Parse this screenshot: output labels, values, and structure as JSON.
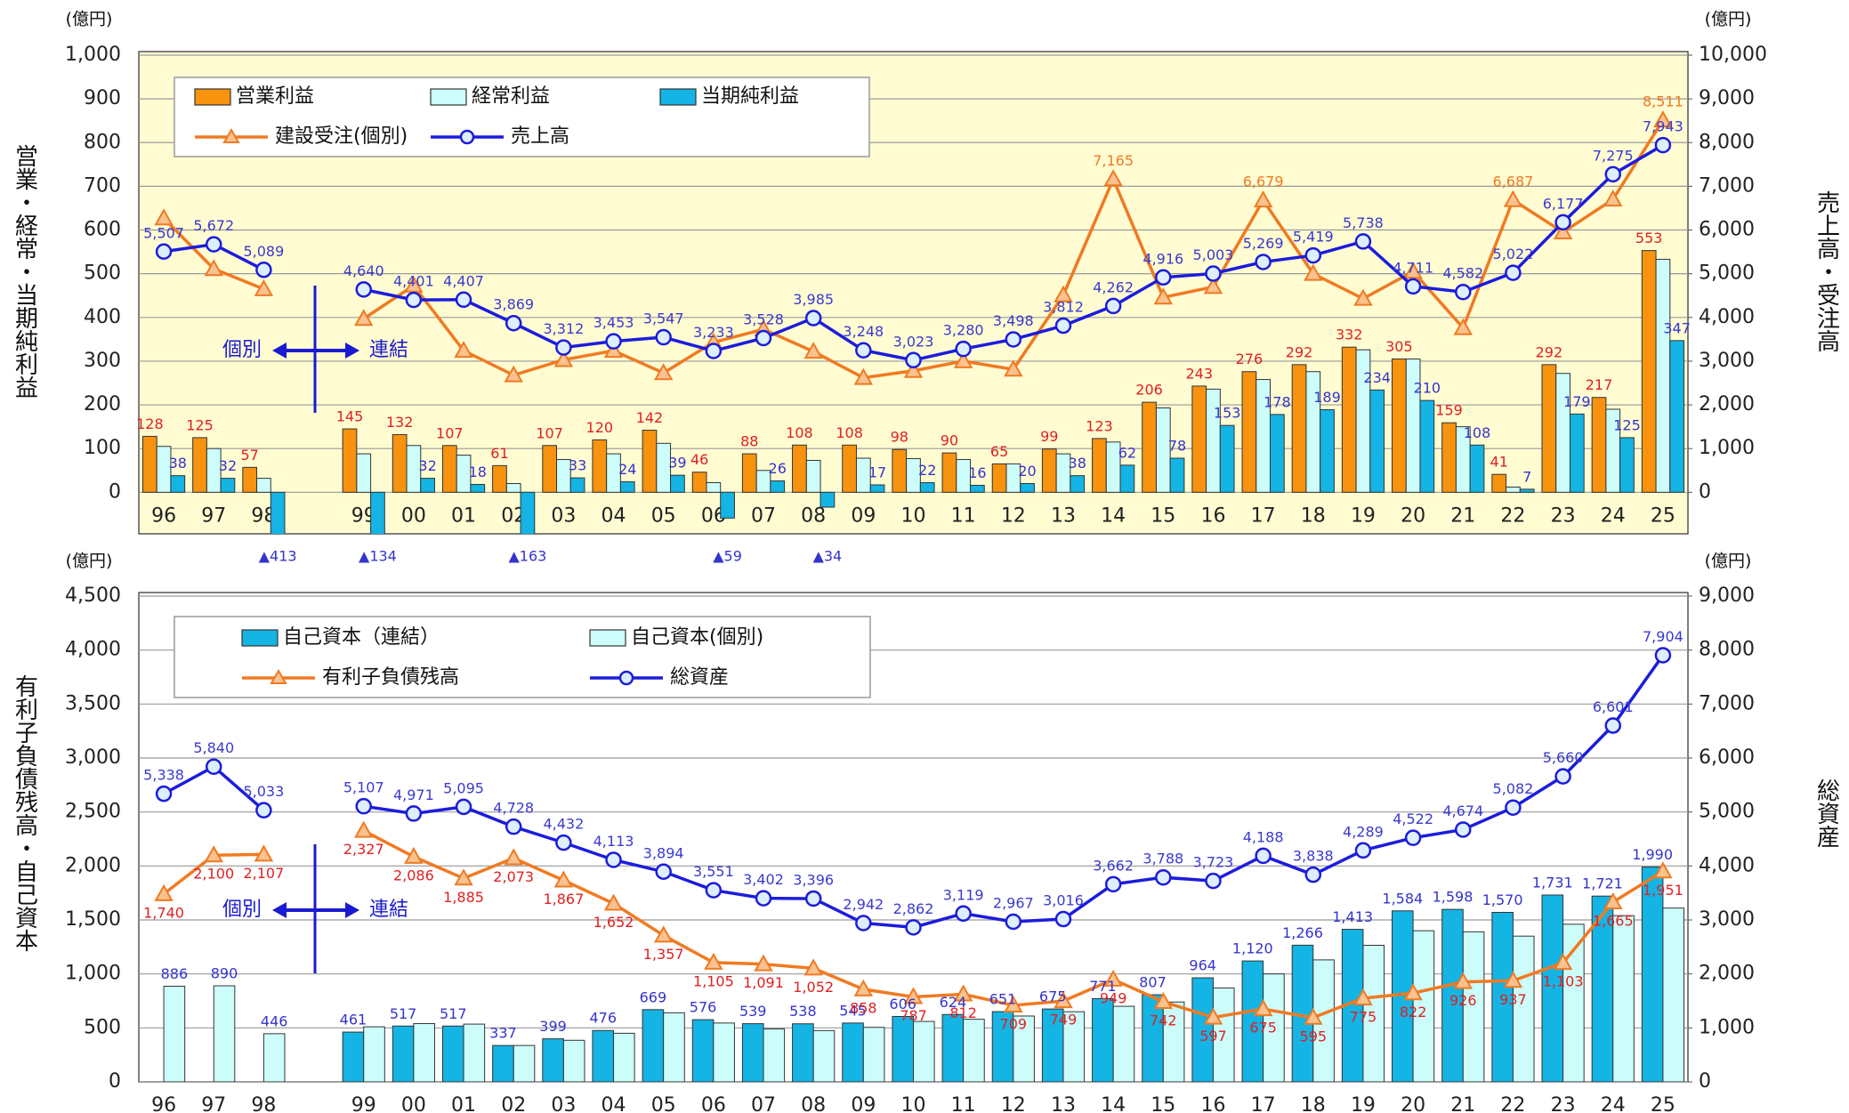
{
  "chart_data": [
    {
      "type": "combo",
      "unit_left": "(億円)",
      "unit_right": "(億円)",
      "ylabel": "営業・経常・当期純利益",
      "y2label": "売上高・受注高",
      "annotations": [
        "個別",
        "連結"
      ],
      "categories": [
        "96",
        "97",
        "98",
        null,
        "99",
        "00",
        "01",
        "02",
        "03",
        "04",
        "05",
        "06",
        "07",
        "08",
        "09",
        "10",
        "11",
        "12",
        "13",
        "14",
        "15",
        "16",
        "17",
        "18",
        "19",
        "20",
        "21",
        "22",
        "23",
        "24",
        "25"
      ],
      "ylim": [
        -95,
        1000
      ],
      "yticks": [
        0,
        100,
        200,
        300,
        400,
        500,
        600,
        700,
        800,
        900,
        {
          "value": 1000,
          "label": "1,000"
        }
      ],
      "y2lim": [
        -950,
        10000
      ],
      "y2ticks": [
        0,
        {
          "value": 1000,
          "label": "1,000"
        },
        {
          "value": 2000,
          "label": "2,000"
        },
        {
          "value": 3000,
          "label": "3,000"
        },
        {
          "value": 4000,
          "label": "4,000"
        },
        {
          "value": 5000,
          "label": "5,000"
        },
        {
          "value": 6000,
          "label": "6,000"
        },
        {
          "value": 7000,
          "label": "7,000"
        },
        {
          "value": 8000,
          "label": "8,000"
        },
        {
          "value": 9000,
          "label": "9,000"
        },
        {
          "value": 10000,
          "label": "10,000"
        }
      ],
      "grid": true,
      "background": "#fffcd2",
      "series": [
        {
          "name": "営業利益",
          "type": "bar",
          "color": "#f7930f",
          "label_color": "#e02020",
          "data_labels": true,
          "values": [
            128,
            125,
            57,
            null,
            145,
            132,
            107,
            61,
            107,
            120,
            142,
            46,
            88,
            108,
            108,
            98,
            90,
            65,
            99,
            123,
            206,
            243,
            276,
            292,
            332,
            305,
            159,
            41,
            292,
            217,
            553
          ]
        },
        {
          "name": "経常利益",
          "type": "bar",
          "color": "#ccfdfb",
          "values": [
            105,
            100,
            32,
            null,
            88,
            107,
            85,
            20,
            75,
            88,
            112,
            22,
            50,
            73,
            78,
            77,
            75,
            65,
            88,
            115,
            193,
            236,
            258,
            276,
            326,
            305,
            150,
            12,
            272,
            190,
            533
          ]
        },
        {
          "name": "当期純利益",
          "type": "bar",
          "color": "#14b4e4",
          "label_color": "#3434cc",
          "values": [
            38,
            32,
            -413,
            null,
            -134,
            32,
            18,
            -163,
            33,
            24,
            39,
            -59,
            26,
            -34,
            17,
            22,
            16,
            20,
            38,
            62,
            78,
            153,
            178,
            189,
            234,
            210,
            108,
            7,
            179,
            125,
            347
          ],
          "value_labels": [
            "38",
            "32",
            "▲413",
            null,
            "▲134",
            "32",
            "18",
            "▲163",
            "33",
            "24",
            "39",
            "▲59",
            "26",
            "▲34",
            "17",
            "22",
            "16",
            "20",
            "38",
            "62",
            "78",
            "153",
            "178",
            "189",
            "234",
            "210",
            "108",
            "7",
            "179",
            "125",
            "347"
          ]
        },
        {
          "name": "建設受注(個別)",
          "type": "line",
          "axis": "y2",
          "color": "#f07a22",
          "marker": "triangle",
          "marker_fill": "#f9c28e",
          "label_color": "#f07a22",
          "values": [
            6270,
            5110,
            4650,
            null,
            3970,
            4730,
            3240,
            2680,
            3030,
            3240,
            2730,
            3430,
            3730,
            3220,
            2620,
            2780,
            3000,
            2810,
            4510,
            7165,
            4460,
            4700,
            6679,
            5000,
            4430,
            5050,
            3760,
            6687,
            5950,
            6700,
            8511
          ],
          "value_labels": [
            null,
            null,
            null,
            null,
            null,
            null,
            null,
            null,
            null,
            null,
            null,
            null,
            null,
            null,
            null,
            null,
            null,
            null,
            null,
            "7,165",
            null,
            null,
            "6,679",
            null,
            null,
            null,
            null,
            "6,687",
            null,
            null,
            "8,511"
          ]
        },
        {
          "name": "売上高",
          "type": "line",
          "axis": "y2",
          "color": "#1c1cdc",
          "marker": "circle",
          "marker_fill": "#ddeeff",
          "label_color": "#3a3ad0",
          "values": [
            5507,
            5672,
            5089,
            null,
            4640,
            4401,
            4407,
            3869,
            3312,
            3453,
            3547,
            3233,
            3528,
            3985,
            3248,
            3023,
            3280,
            3498,
            3812,
            4262,
            4916,
            5003,
            5269,
            5419,
            5738,
            4711,
            4582,
            5022,
            6177,
            7275,
            7943
          ],
          "value_labels": [
            "5,507",
            "5,672",
            "5,089",
            null,
            "4,640",
            "4,401",
            "4,407",
            "3,869",
            "3,312",
            "3,453",
            "3,547",
            "3,233",
            "3,528",
            "3,985",
            "3,248",
            "3,023",
            "3,280",
            "3,498",
            "3,812",
            "4,262",
            "4,916",
            "5,003",
            "5,269",
            "5,419",
            "5,738",
            "4,711",
            "4,582",
            "5,022",
            "6,177",
            "7,275",
            "7,943"
          ]
        }
      ]
    },
    {
      "type": "combo",
      "unit_left": "(億円)",
      "unit_right": "(億円)",
      "ylabel": "有利子負債残高・自己資本",
      "y2label": "総資産",
      "annotations": [
        "個別",
        "連結"
      ],
      "categories": [
        "96",
        "97",
        "98",
        null,
        "99",
        "00",
        "01",
        "02",
        "03",
        "04",
        "05",
        "06",
        "07",
        "08",
        "09",
        "10",
        "11",
        "12",
        "13",
        "14",
        "15",
        "16",
        "17",
        "18",
        "19",
        "20",
        "21",
        "22",
        "23",
        "24",
        "25"
      ],
      "ylim": [
        0,
        4500
      ],
      "yticks": [
        0,
        500,
        {
          "value": 1000,
          "label": "1,000"
        },
        {
          "value": 1500,
          "label": "1,500"
        },
        {
          "value": 2000,
          "label": "2,000"
        },
        {
          "value": 2500,
          "label": "2,500"
        },
        {
          "value": 3000,
          "label": "3,000"
        },
        {
          "value": 3500,
          "label": "3,500"
        },
        {
          "value": 4000,
          "label": "4,000"
        },
        {
          "value": 4500,
          "label": "4,500"
        }
      ],
      "y2lim": [
        0,
        9000
      ],
      "y2ticks": [
        0,
        {
          "value": 1000,
          "label": "1,000"
        },
        {
          "value": 2000,
          "label": "2,000"
        },
        {
          "value": 3000,
          "label": "3,000"
        },
        {
          "value": 4000,
          "label": "4,000"
        },
        {
          "value": 5000,
          "label": "5,000"
        },
        {
          "value": 6000,
          "label": "6,000"
        },
        {
          "value": 7000,
          "label": "7,000"
        },
        {
          "value": 8000,
          "label": "8,000"
        },
        {
          "value": 9000,
          "label": "9,000"
        }
      ],
      "grid": true,
      "background": "#ffffff",
      "series": [
        {
          "name": "自己資本（連結）",
          "type": "bar",
          "color": "#14b4e4",
          "label_color": "#3434cc",
          "values": [
            null,
            null,
            null,
            null,
            461,
            517,
            517,
            337,
            399,
            476,
            669,
            576,
            539,
            538,
            545,
            606,
            624,
            651,
            675,
            771,
            807,
            964,
            1120,
            1266,
            1413,
            1584,
            1598,
            1570,
            1731,
            1721,
            1990
          ],
          "value_labels": [
            null,
            null,
            null,
            null,
            "461",
            "517",
            "517",
            "337",
            "399",
            "476",
            "669",
            "576",
            "539",
            "538",
            "545",
            "606",
            "624",
            "651",
            "675",
            "771",
            "807",
            "964",
            "1,120",
            "1,266",
            "1,413",
            "1,584",
            "1,598",
            "1,570",
            "1,731",
            "1,721",
            "1,990"
          ]
        },
        {
          "name": "自己資本(個別)",
          "type": "bar",
          "color": "#ccfdfb",
          "label_color": "#3434cc",
          "values": [
            886,
            890,
            446,
            null,
            510,
            540,
            535,
            337,
            385,
            450,
            640,
            545,
            490,
            475,
            505,
            560,
            580,
            610,
            650,
            700,
            740,
            870,
            1000,
            1130,
            1265,
            1400,
            1390,
            1350,
            1460,
            1540,
            1610
          ],
          "value_labels": [
            "886",
            "890",
            "446",
            null,
            null,
            null,
            null,
            null,
            null,
            null,
            null,
            null,
            null,
            null,
            null,
            null,
            null,
            null,
            null,
            null,
            null,
            null,
            null,
            null,
            null,
            null,
            null,
            null,
            null,
            null,
            null
          ]
        },
        {
          "name": "有利子負債残高",
          "type": "line",
          "color": "#f07a22",
          "marker": "triangle",
          "marker_fill": "#f9c28e",
          "label_color": "#e02020",
          "values": [
            1740,
            2100,
            2107,
            null,
            2327,
            2086,
            1885,
            2073,
            1867,
            1652,
            1357,
            1105,
            1091,
            1052,
            858,
            787,
            812,
            709,
            749,
            949,
            742,
            597,
            675,
            595,
            775,
            822,
            926,
            937,
            1103,
            1665,
            1951
          ],
          "value_labels": [
            "1,740",
            "2,100",
            "2,107",
            null,
            "2,327",
            "2,086",
            "1,885",
            "2,073",
            "1,867",
            "1,652",
            "1,357",
            "1,105",
            "1,091",
            "1,052",
            "858",
            "787",
            "812",
            "709",
            "749",
            "949",
            "742",
            "597",
            "675",
            "595",
            "775",
            "822",
            "926",
            "937",
            "1,103",
            "1,665",
            "1,951"
          ]
        },
        {
          "name": "総資産",
          "type": "line",
          "axis": "y2",
          "color": "#1c1cdc",
          "marker": "circle",
          "marker_fill": "#ddeeff",
          "label_color": "#3a3ad0",
          "values": [
            5338,
            5840,
            5033,
            null,
            5107,
            4971,
            5095,
            4728,
            4432,
            4113,
            3894,
            3551,
            3402,
            3396,
            2942,
            2862,
            3119,
            2967,
            3016,
            3662,
            3788,
            3723,
            4188,
            3838,
            4289,
            4522,
            4674,
            5082,
            5660,
            6601,
            7904
          ],
          "value_labels": [
            "5,338",
            "5,840",
            "5,033",
            null,
            "5,107",
            "4,971",
            "5,095",
            "4,728",
            "4,432",
            "4,113",
            "3,894",
            "3,551",
            "3,402",
            "3,396",
            "2,942",
            "2,862",
            "3,119",
            "2,967",
            "3,016",
            "3,662",
            "3,788",
            "3,723",
            "4,188",
            "3,838",
            "4,289",
            "4,522",
            "4,674",
            "5,082",
            "5,660",
            "6,601",
            "7,904"
          ]
        }
      ]
    }
  ]
}
